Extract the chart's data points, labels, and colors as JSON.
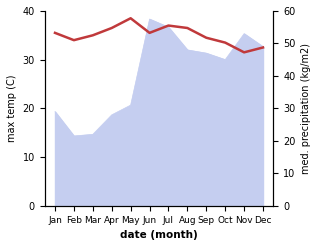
{
  "months": [
    "Jan",
    "Feb",
    "Mar",
    "Apr",
    "May",
    "Jun",
    "Jul",
    "Aug",
    "Sep",
    "Oct",
    "Nov",
    "Dec"
  ],
  "x": [
    0,
    1,
    2,
    3,
    4,
    5,
    6,
    7,
    8,
    9,
    10,
    11
  ],
  "temp": [
    35.5,
    34.0,
    35.0,
    36.5,
    38.5,
    35.5,
    37.0,
    36.5,
    34.5,
    33.5,
    31.5,
    32.5
  ],
  "precip": [
    29.0,
    21.5,
    22.0,
    28.0,
    31.0,
    57.5,
    55.0,
    48.0,
    47.0,
    45.0,
    53.0,
    49.0
  ],
  "temp_color": "#c0393b",
  "precip_fill_color": "#c5cef0",
  "ylabel_left": "max temp (C)",
  "ylabel_right": "med. precipitation (kg/m2)",
  "xlabel": "date (month)",
  "ylim_left": [
    0,
    40
  ],
  "ylim_right": [
    0,
    60
  ],
  "yticks_left": [
    0,
    10,
    20,
    30,
    40
  ],
  "yticks_right": [
    0,
    10,
    20,
    30,
    40,
    50,
    60
  ],
  "bg_color": "#ffffff"
}
